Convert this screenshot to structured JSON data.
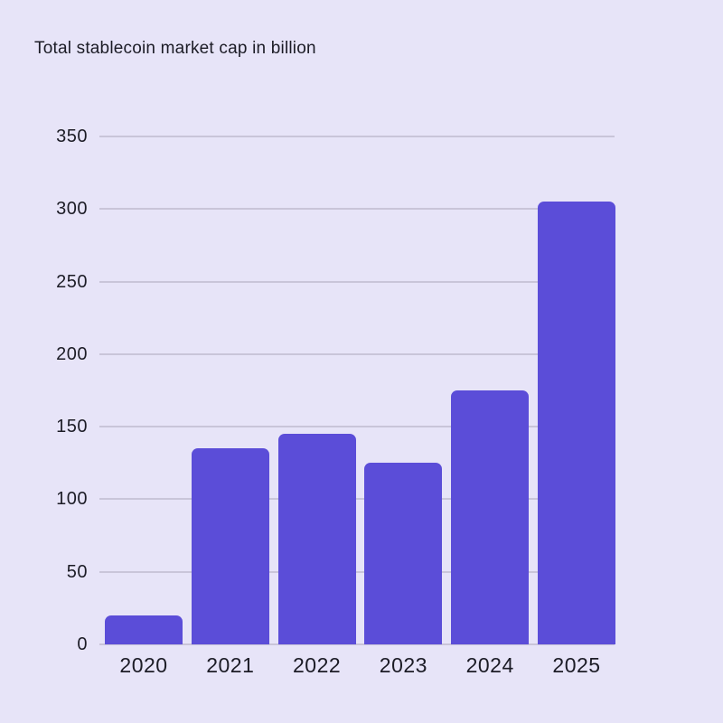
{
  "chart_data": {
    "type": "bar",
    "title": "Total stablecoin market cap in billion",
    "categories": [
      "2020",
      "2021",
      "2022",
      "2023",
      "2024",
      "2025"
    ],
    "values": [
      20,
      135,
      145,
      125,
      175,
      305
    ],
    "xlabel": "",
    "ylabel": "",
    "ylim": [
      0,
      350
    ],
    "yticks": [
      0,
      50,
      100,
      150,
      200,
      250,
      300,
      350
    ],
    "grid": "horizontal-only",
    "legend": "none",
    "colors": {
      "background": "#e7e4f8",
      "bar": "#5b4dd8",
      "gridline": "#c9c5d9",
      "text": "#1c1c26"
    }
  }
}
